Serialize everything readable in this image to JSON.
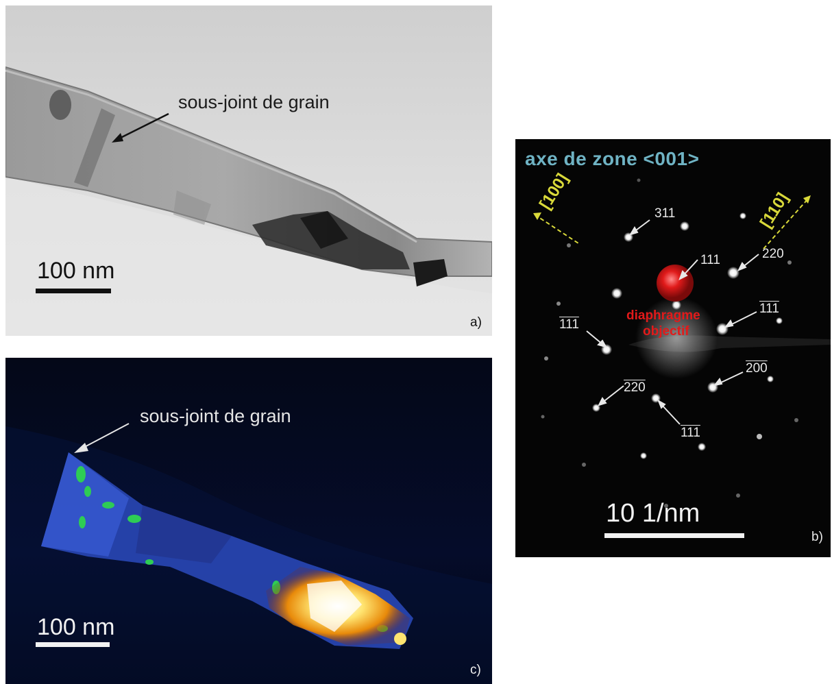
{
  "panel_a": {
    "annotation": "sous-joint de grain",
    "scale_bar": "100 nm",
    "tag": "a)"
  },
  "panel_b": {
    "title": "axe de zone <001>",
    "directions": [
      "[100]",
      "[110]"
    ],
    "aperture_label_line1": "diaphragme",
    "aperture_label_line2": "objectif",
    "index_311": "311",
    "index_111": "111",
    "index_220": "220",
    "index_m111_digits": "111",
    "index_1mm_digits": "111",
    "index_m200_digits": "200",
    "index_mm20_digits": "220",
    "index_mmm_digits": "111",
    "scale_bar": "10 1/nm",
    "tag": "b)"
  },
  "panel_c": {
    "annotation": "sous-joint de grain",
    "scale_bar": "100 nm",
    "tag": "c)"
  },
  "colors": {
    "tem_background": "#d7d7d7",
    "diffraction_background": "#050505",
    "darkfield_background": "#03071a",
    "title_cyan": "#6fb3c4",
    "aperture_red": "#e21a1a",
    "direction_yellow": "#d9d93a"
  }
}
